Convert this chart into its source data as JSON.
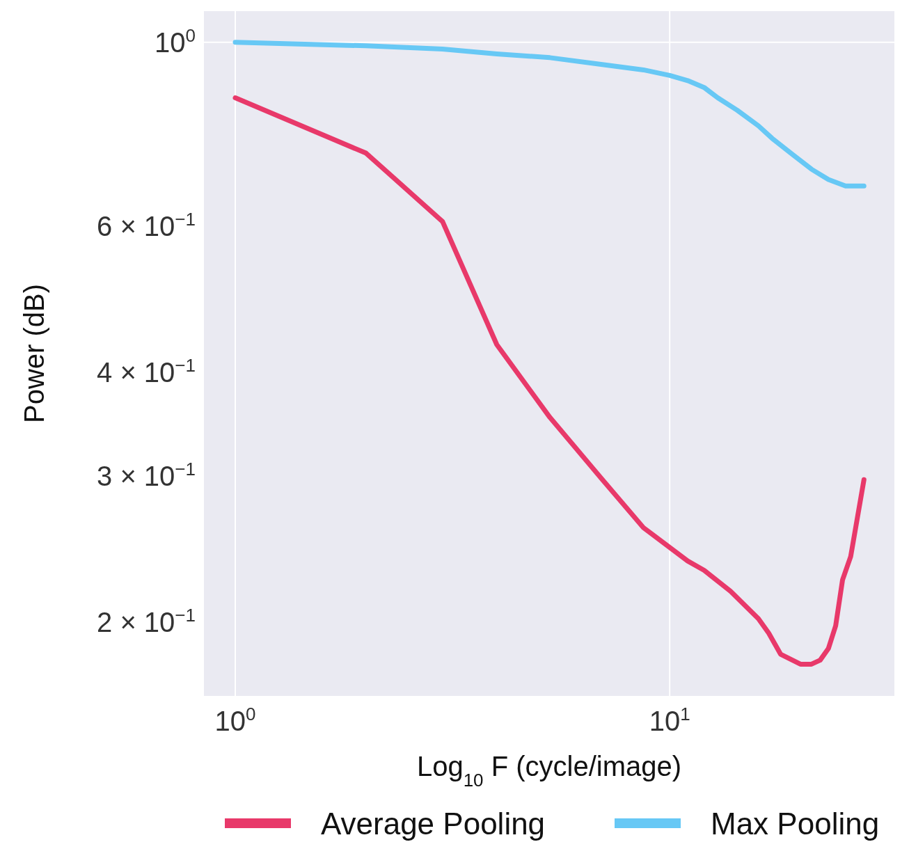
{
  "chart_data": {
    "type": "line",
    "xlabel": "Log$_{10}$ F (cycle/image)",
    "ylabel": "Power (dB)",
    "log": "xy",
    "grid": true,
    "legend": "bottom",
    "xlim": [
      0.847,
      32.9
    ],
    "ylim": [
      0.163,
      1.09
    ],
    "xticks": [
      {
        "value": 1,
        "label": "10$^{0}$"
      },
      {
        "value": 10,
        "label": "10$^{1}$"
      }
    ],
    "yticks": [
      {
        "value": 0.2,
        "label": "2 × 10$^{−1}$"
      },
      {
        "value": 0.3,
        "label": "3 × 10$^{−1}$"
      },
      {
        "value": 0.4,
        "label": "4 × 10$^{−1}$"
      },
      {
        "value": 0.6,
        "label": "6 × 10$^{−1}$"
      },
      {
        "value": 1,
        "label": "10$^{0}$"
      }
    ],
    "series": [
      {
        "name": "Average Pooling",
        "color": "#e8396a",
        "x": [
          1,
          2,
          3,
          4,
          5.3,
          7,
          8.7,
          11,
          12,
          13.8,
          16,
          16.9,
          18,
          20,
          21.2,
          22.2,
          23.2,
          24.1,
          25,
          26.1,
          28
        ],
        "values": [
          0.857,
          0.735,
          0.608,
          0.432,
          0.353,
          0.297,
          0.26,
          0.237,
          0.231,
          0.218,
          0.202,
          0.194,
          0.183,
          0.178,
          0.178,
          0.18,
          0.186,
          0.198,
          0.225,
          0.24,
          0.297
        ]
      },
      {
        "name": "Max Pooling",
        "color": "#67c8f5",
        "x": [
          1,
          2,
          3,
          4,
          5.3,
          7,
          8.7,
          10,
          11,
          12,
          12.9,
          14.3,
          16,
          17.2,
          19.2,
          21.2,
          23.2,
          25.4,
          28
        ],
        "values": [
          1,
          0.99,
          0.981,
          0.968,
          0.958,
          0.94,
          0.926,
          0.912,
          0.899,
          0.882,
          0.857,
          0.828,
          0.793,
          0.766,
          0.732,
          0.703,
          0.683,
          0.671,
          0.671
        ]
      }
    ]
  }
}
